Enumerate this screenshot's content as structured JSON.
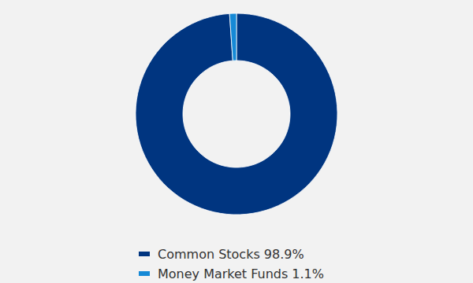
{
  "chart_data": {
    "type": "donut",
    "categories": [
      "Common Stocks",
      "Money Market Funds"
    ],
    "values": [
      98.9,
      1.1
    ],
    "value_labels": [
      "98.9%",
      "1.1%"
    ],
    "colors": [
      "#003580",
      "#1589d6"
    ],
    "legend": "bottom"
  }
}
